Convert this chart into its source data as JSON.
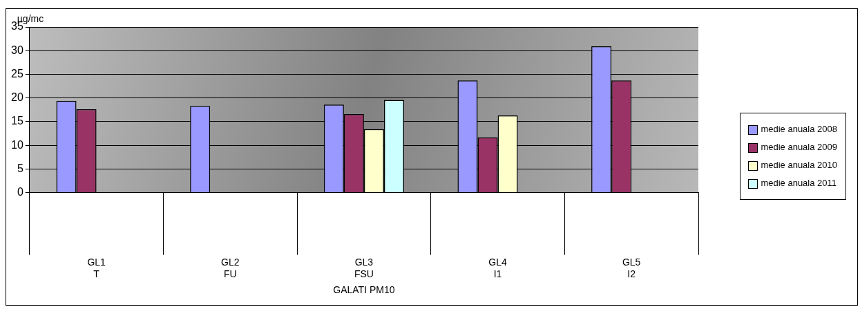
{
  "chart_data": {
    "type": "bar",
    "ylabel": "µg/mc",
    "xlabel": "GALATI PM10",
    "categories": [
      "GL1\nT",
      "GL2\nFU",
      "GL3\nFSU",
      "GL4\nI1",
      "GL5\nI2"
    ],
    "series": [
      {
        "name": "medie anuala 2008",
        "color": "#9999ff",
        "values": [
          19.4,
          18.3,
          18.6,
          23.7,
          30.9
        ]
      },
      {
        "name": "medie anuala 2009",
        "color": "#993366",
        "values": [
          17.6,
          null,
          16.6,
          11.7,
          23.7
        ]
      },
      {
        "name": "medie anuala 2010",
        "color": "#ffffcc",
        "values": [
          null,
          null,
          13.4,
          16.3,
          null
        ]
      },
      {
        "name": "medie anuala 2011",
        "color": "#ccffff",
        "values": [
          null,
          null,
          19.6,
          null,
          null
        ]
      }
    ],
    "ylim": [
      0,
      35
    ],
    "yticks": [
      0,
      5,
      10,
      15,
      20,
      25,
      30,
      35
    ],
    "grid": "y",
    "legend": "right"
  }
}
